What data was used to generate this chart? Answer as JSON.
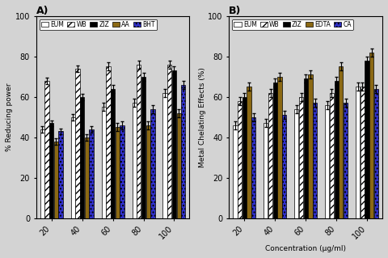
{
  "panel_A": {
    "title": "A)",
    "ylabel": "% Reducing power",
    "concentrations": [
      20,
      40,
      60,
      80,
      100
    ],
    "series": {
      "EUM": {
        "values": [
          44,
          50,
          55,
          57,
          62
        ],
        "errors": [
          1.5,
          1.5,
          2,
          2,
          2
        ],
        "color": "white",
        "edgecolor": "black",
        "hatch": ""
      },
      "WB": {
        "values": [
          68,
          74,
          75,
          76,
          76
        ],
        "errors": [
          1.5,
          1.5,
          2,
          2,
          2
        ],
        "color": "white",
        "edgecolor": "black",
        "hatch": "////"
      },
      "ZIZ": {
        "values": [
          47,
          60,
          64,
          70,
          73
        ],
        "errors": [
          1.5,
          1.5,
          2,
          2,
          2
        ],
        "color": "black",
        "edgecolor": "black",
        "hatch": ""
      },
      "AA": {
        "values": [
          38,
          40,
          45,
          46,
          52
        ],
        "errors": [
          1.5,
          1.5,
          2,
          2,
          2
        ],
        "color": "#8B6914",
        "edgecolor": "black",
        "hatch": ""
      },
      "BHT": {
        "values": [
          43,
          44,
          46,
          54,
          66
        ],
        "errors": [
          1.5,
          1.5,
          2,
          2,
          2
        ],
        "color": "#3030CC",
        "edgecolor": "black",
        "hatch": "...."
      }
    },
    "ylim": [
      0,
      100
    ],
    "yticks": [
      0,
      20,
      40,
      60,
      80,
      100
    ]
  },
  "panel_B": {
    "title": "B)",
    "ylabel": "Metal Chelating Effects (%)",
    "xlabel": "Concentration (µg/ml)",
    "concentrations": [
      20,
      40,
      60,
      80,
      100
    ],
    "series": {
      "EUM": {
        "values": [
          46,
          47,
          54,
          56,
          65
        ],
        "errors": [
          2,
          2,
          2,
          2,
          2
        ],
        "color": "white",
        "edgecolor": "black",
        "hatch": ""
      },
      "WB": {
        "values": [
          58,
          62,
          60,
          62,
          65
        ],
        "errors": [
          2,
          2,
          2,
          2,
          2
        ],
        "color": "white",
        "edgecolor": "black",
        "hatch": "////"
      },
      "ZIZ": {
        "values": [
          60,
          67,
          69,
          68,
          78
        ],
        "errors": [
          2,
          2,
          2,
          2,
          2
        ],
        "color": "black",
        "edgecolor": "black",
        "hatch": ""
      },
      "EDTA": {
        "values": [
          65,
          70,
          71,
          75,
          82
        ],
        "errors": [
          2,
          2,
          2,
          2,
          2
        ],
        "color": "#8B6914",
        "edgecolor": "black",
        "hatch": ""
      },
      "CA": {
        "values": [
          50,
          51,
          57,
          57,
          64
        ],
        "errors": [
          2,
          2,
          2,
          2,
          2
        ],
        "color": "#3030CC",
        "edgecolor": "black",
        "hatch": "...."
      }
    },
    "ylim": [
      0,
      100
    ],
    "yticks": [
      0,
      20,
      40,
      60,
      80,
      100
    ]
  },
  "background_color": "#d3d3d3",
  "fig_width": 4.8,
  "fig_height": 3.19
}
